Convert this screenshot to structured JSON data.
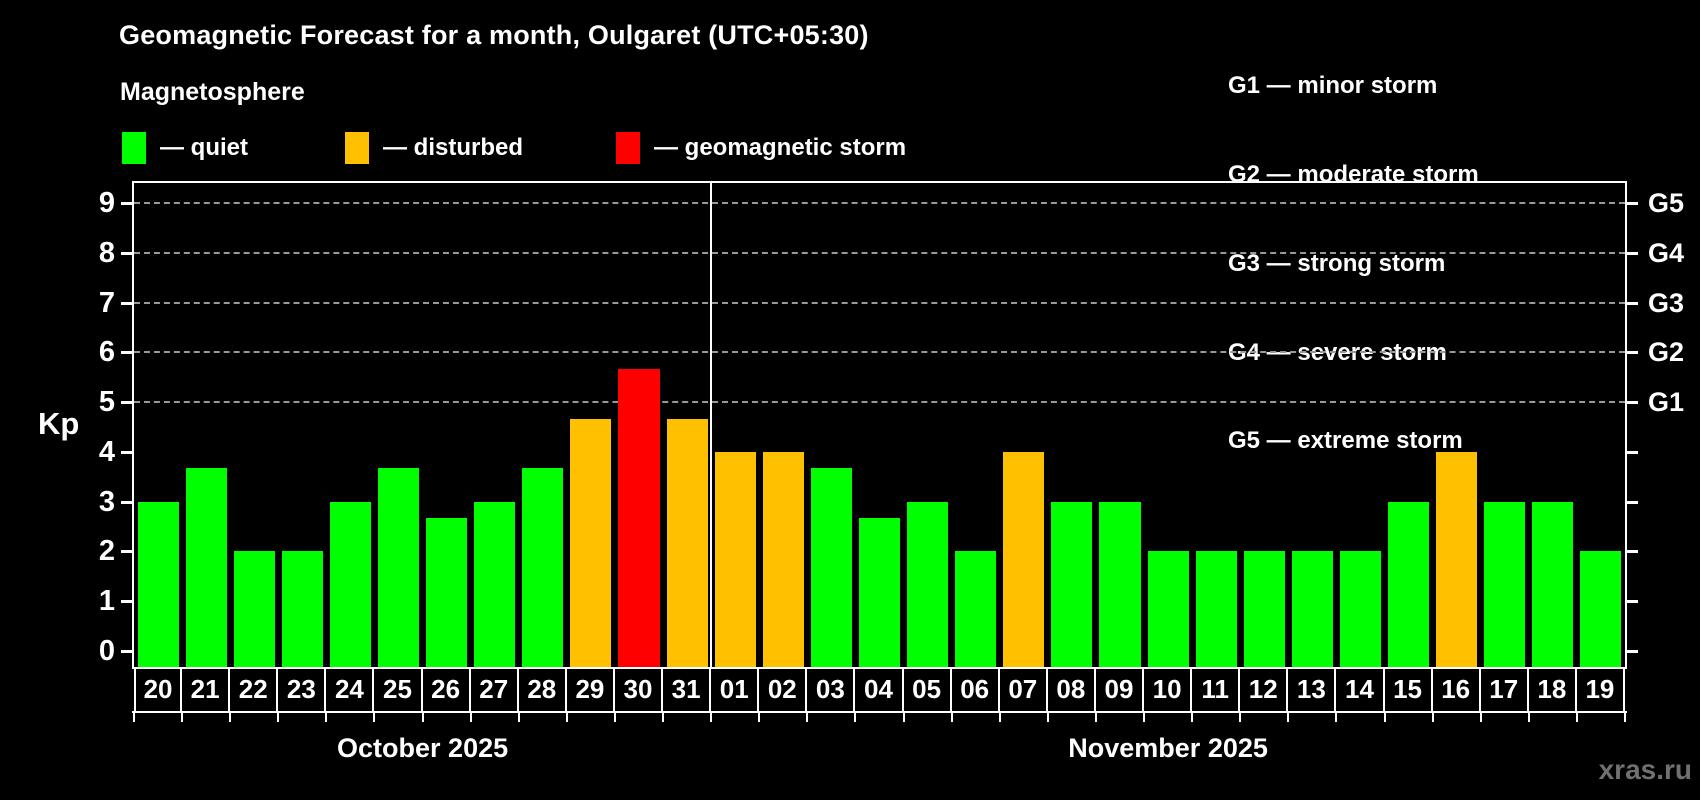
{
  "title": "Geomagnetic Forecast for a month, Oulgaret (UTC+05:30)",
  "subtitle": "Magnetosphere",
  "storm_scale_legend": [
    "G1 — minor storm",
    "G2 — moderate storm",
    "G3 — strong storm",
    "G4 — severe storm",
    "G5 — extreme storm"
  ],
  "legend": {
    "items": [
      {
        "id": "quiet",
        "label": "— quiet",
        "color": "#00ff00"
      },
      {
        "id": "disturbed",
        "label": "— disturbed",
        "color": "#ffc000"
      },
      {
        "id": "storm",
        "label": "— geomagnetic storm",
        "color": "#ff0000"
      }
    ]
  },
  "watermark": "xras.ru",
  "colors": {
    "background": "#000000",
    "axis": "#ffffff",
    "grid": "#999999",
    "watermark": "#707070"
  },
  "chart_data": {
    "type": "bar",
    "ylabel": "Kp",
    "ylim": [
      0,
      9
    ],
    "yticks": [
      0,
      1,
      2,
      3,
      4,
      5,
      6,
      7,
      8,
      9
    ],
    "gridlines_at": [
      5,
      6,
      7,
      8,
      9
    ],
    "right_axis_labels": [
      {
        "label": "G1",
        "kp": 5
      },
      {
        "label": "G2",
        "kp": 6
      },
      {
        "label": "G3",
        "kp": 7
      },
      {
        "label": "G4",
        "kp": 8
      },
      {
        "label": "G5",
        "kp": 9
      }
    ],
    "status_colors": {
      "quiet": "#00ff00",
      "disturbed": "#ffc000",
      "storm": "#ff0000"
    },
    "months": [
      {
        "label": "October 2025",
        "days": [
          {
            "date": "20",
            "kp": 3.0,
            "status": "quiet"
          },
          {
            "date": "21",
            "kp": 3.67,
            "status": "quiet"
          },
          {
            "date": "22",
            "kp": 2.0,
            "status": "quiet"
          },
          {
            "date": "23",
            "kp": 2.0,
            "status": "quiet"
          },
          {
            "date": "24",
            "kp": 3.0,
            "status": "quiet"
          },
          {
            "date": "25",
            "kp": 3.67,
            "status": "quiet"
          },
          {
            "date": "26",
            "kp": 2.67,
            "status": "quiet"
          },
          {
            "date": "27",
            "kp": 3.0,
            "status": "quiet"
          },
          {
            "date": "28",
            "kp": 3.67,
            "status": "quiet"
          },
          {
            "date": "29",
            "kp": 4.67,
            "status": "disturbed"
          },
          {
            "date": "30",
            "kp": 5.67,
            "status": "storm"
          },
          {
            "date": "31",
            "kp": 4.67,
            "status": "disturbed"
          }
        ]
      },
      {
        "label": "November 2025",
        "days": [
          {
            "date": "01",
            "kp": 4.0,
            "status": "disturbed"
          },
          {
            "date": "02",
            "kp": 4.0,
            "status": "disturbed"
          },
          {
            "date": "03",
            "kp": 3.67,
            "status": "quiet"
          },
          {
            "date": "04",
            "kp": 2.67,
            "status": "quiet"
          },
          {
            "date": "05",
            "kp": 3.0,
            "status": "quiet"
          },
          {
            "date": "06",
            "kp": 2.0,
            "status": "quiet"
          },
          {
            "date": "07",
            "kp": 4.0,
            "status": "disturbed"
          },
          {
            "date": "08",
            "kp": 3.0,
            "status": "quiet"
          },
          {
            "date": "09",
            "kp": 3.0,
            "status": "quiet"
          },
          {
            "date": "10",
            "kp": 2.0,
            "status": "quiet"
          },
          {
            "date": "11",
            "kp": 2.0,
            "status": "quiet"
          },
          {
            "date": "12",
            "kp": 2.0,
            "status": "quiet"
          },
          {
            "date": "13",
            "kp": 2.0,
            "status": "quiet"
          },
          {
            "date": "14",
            "kp": 2.0,
            "status": "quiet"
          },
          {
            "date": "15",
            "kp": 3.0,
            "status": "quiet"
          },
          {
            "date": "16",
            "kp": 4.0,
            "status": "disturbed"
          },
          {
            "date": "17",
            "kp": 3.0,
            "status": "quiet"
          },
          {
            "date": "18",
            "kp": 3.0,
            "status": "quiet"
          },
          {
            "date": "19",
            "kp": 2.0,
            "status": "quiet"
          }
        ]
      }
    ]
  }
}
